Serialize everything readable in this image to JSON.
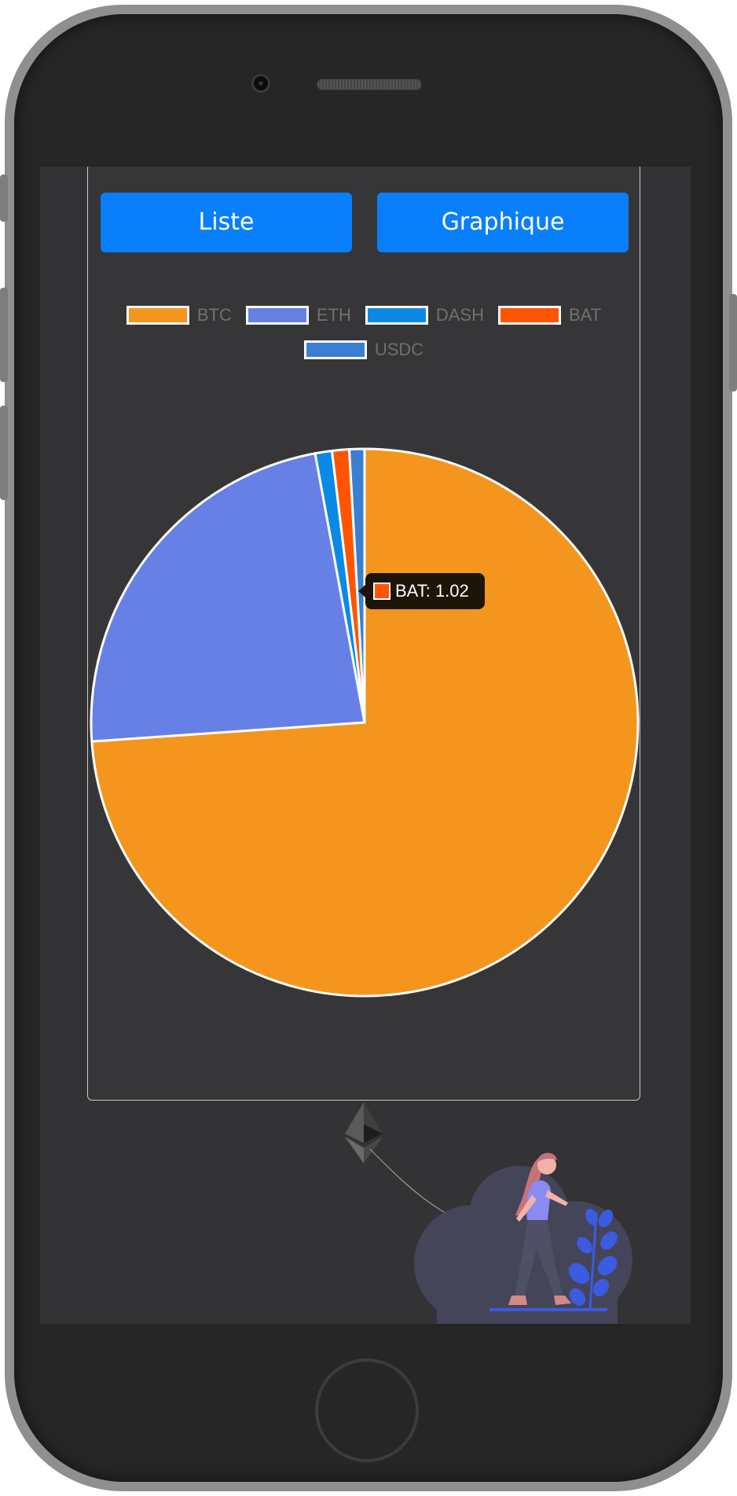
{
  "buttons": {
    "list_label": "Liste",
    "chart_label": "Graphique"
  },
  "colors": {
    "accent": "#0a7ffb",
    "screen_bg": "#333336",
    "card_border": "#c9c9c9"
  },
  "chart_data": {
    "type": "pie",
    "categories": [
      "BTC",
      "ETH",
      "DASH",
      "BAT",
      "USDC"
    ],
    "values": [
      74.5,
      23.4,
      1.0,
      1.02,
      0.9
    ],
    "colors": [
      "#f4951e",
      "#6680e6",
      "#0a8ae6",
      "#ff5500",
      "#3a7fd2"
    ],
    "legend": "top",
    "tooltip": {
      "label": "BAT: 1.02",
      "category": "BAT"
    }
  },
  "illustration": {
    "kite_icon": "ethereum-icon",
    "figure": "woman-walking"
  }
}
